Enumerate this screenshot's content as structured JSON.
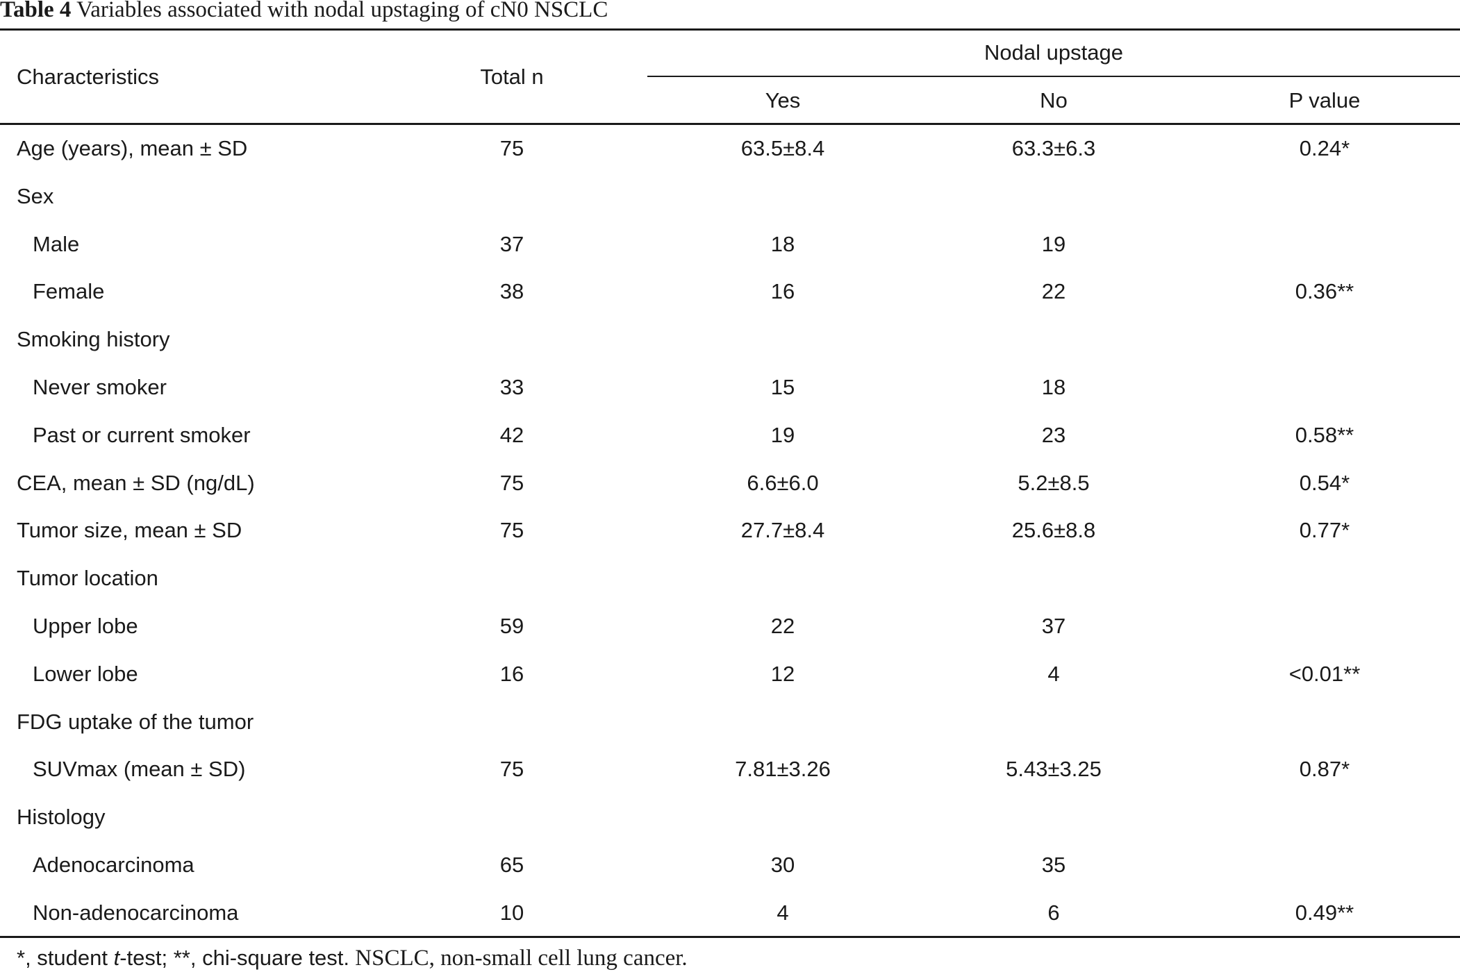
{
  "caption": {
    "number": "Table 4",
    "title": "Variables associated with nodal upstaging of cN0 NSCLC"
  },
  "header": {
    "characteristics": "Characteristics",
    "total": "Total n",
    "group": "Nodal upstage",
    "yes": "Yes",
    "no": "No",
    "p": "P value"
  },
  "rows": [
    {
      "label": "Age (years), mean ± SD",
      "total": "75",
      "yes": "63.5±8.4",
      "no": "63.3±6.3",
      "p": "0.24*"
    },
    {
      "label": "Sex",
      "total": "",
      "yes": "",
      "no": "",
      "p": ""
    },
    {
      "label": "Male",
      "total": "37",
      "yes": "18",
      "no": "19",
      "p": ""
    },
    {
      "label": "Female",
      "total": "38",
      "yes": "16",
      "no": "22",
      "p": "0.36**"
    },
    {
      "label": "Smoking history",
      "total": "",
      "yes": "",
      "no": "",
      "p": ""
    },
    {
      "label": "Never smoker",
      "total": "33",
      "yes": "15",
      "no": "18",
      "p": ""
    },
    {
      "label": "Past or current smoker",
      "total": "42",
      "yes": "19",
      "no": "23",
      "p": "0.58**"
    },
    {
      "label": "CEA, mean ± SD (ng/dL)",
      "total": "75",
      "yes": "6.6±6.0",
      "no": "5.2±8.5",
      "p": "0.54*"
    },
    {
      "label": "Tumor size, mean ± SD",
      "total": "75",
      "yes": "27.7±8.4",
      "no": "25.6±8.8",
      "p": "0.77*"
    },
    {
      "label": "Tumor location",
      "total": "",
      "yes": "",
      "no": "",
      "p": ""
    },
    {
      "label": "Upper lobe",
      "total": "59",
      "yes": "22",
      "no": "37",
      "p": ""
    },
    {
      "label": "Lower lobe",
      "total": "16",
      "yes": "12",
      "no": "4",
      "p": "<0.01**"
    },
    {
      "label": "FDG uptake of the tumor",
      "total": "",
      "yes": "",
      "no": "",
      "p": ""
    },
    {
      "label": "SUVmax (mean ± SD)",
      "total": "75",
      "yes": "7.81±3.26",
      "no": "5.43±3.25",
      "p": "0.87*"
    },
    {
      "label": "Histology",
      "total": "",
      "yes": "",
      "no": "",
      "p": ""
    },
    {
      "label": "Adenocarcinoma",
      "total": "65",
      "yes": "30",
      "no": "35",
      "p": ""
    },
    {
      "label": "Non-adenocarcinoma",
      "total": "10",
      "yes": "4",
      "no": "6",
      "p": "0.49**"
    }
  ],
  "footnote": {
    "part1": "*, student ",
    "t": "t",
    "part2": "-test; **, chi-square test.",
    "part3": " NSCLC, non-small cell lung cancer."
  }
}
